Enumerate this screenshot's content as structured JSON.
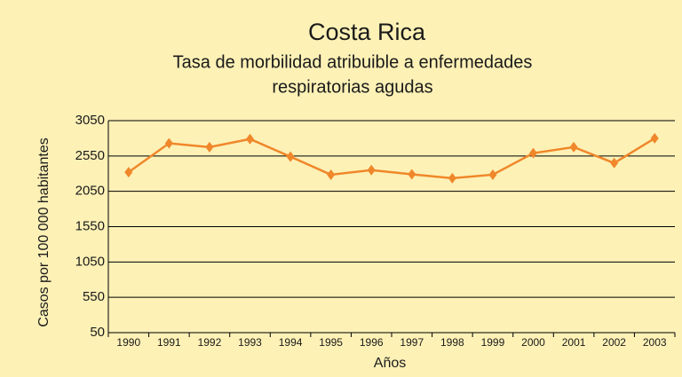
{
  "chart_data": {
    "type": "line",
    "title": "Costa Rica",
    "subtitle": [
      "Tasa de morbilidad atribuible a enfermedades",
      "respiratorias agudas"
    ],
    "x_label": "Años",
    "y_label": "Casos por 100 000 habitantes",
    "categories": [
      "1990",
      "1991",
      "1992",
      "1993",
      "1994",
      "1995",
      "1996",
      "1997",
      "1998",
      "1999",
      "2000",
      "2001",
      "2002",
      "2003"
    ],
    "series": [
      {
        "name": "Costa Rica",
        "color": "#f0872a",
        "values": [
          2320,
          2730,
          2675,
          2790,
          2540,
          2285,
          2350,
          2290,
          2235,
          2285,
          2590,
          2675,
          2450,
          2800
        ]
      }
    ],
    "ylim": [
      50,
      3050
    ],
    "yticks": [
      50,
      550,
      1050,
      1550,
      2050,
      2550,
      3050
    ],
    "grid": true
  }
}
